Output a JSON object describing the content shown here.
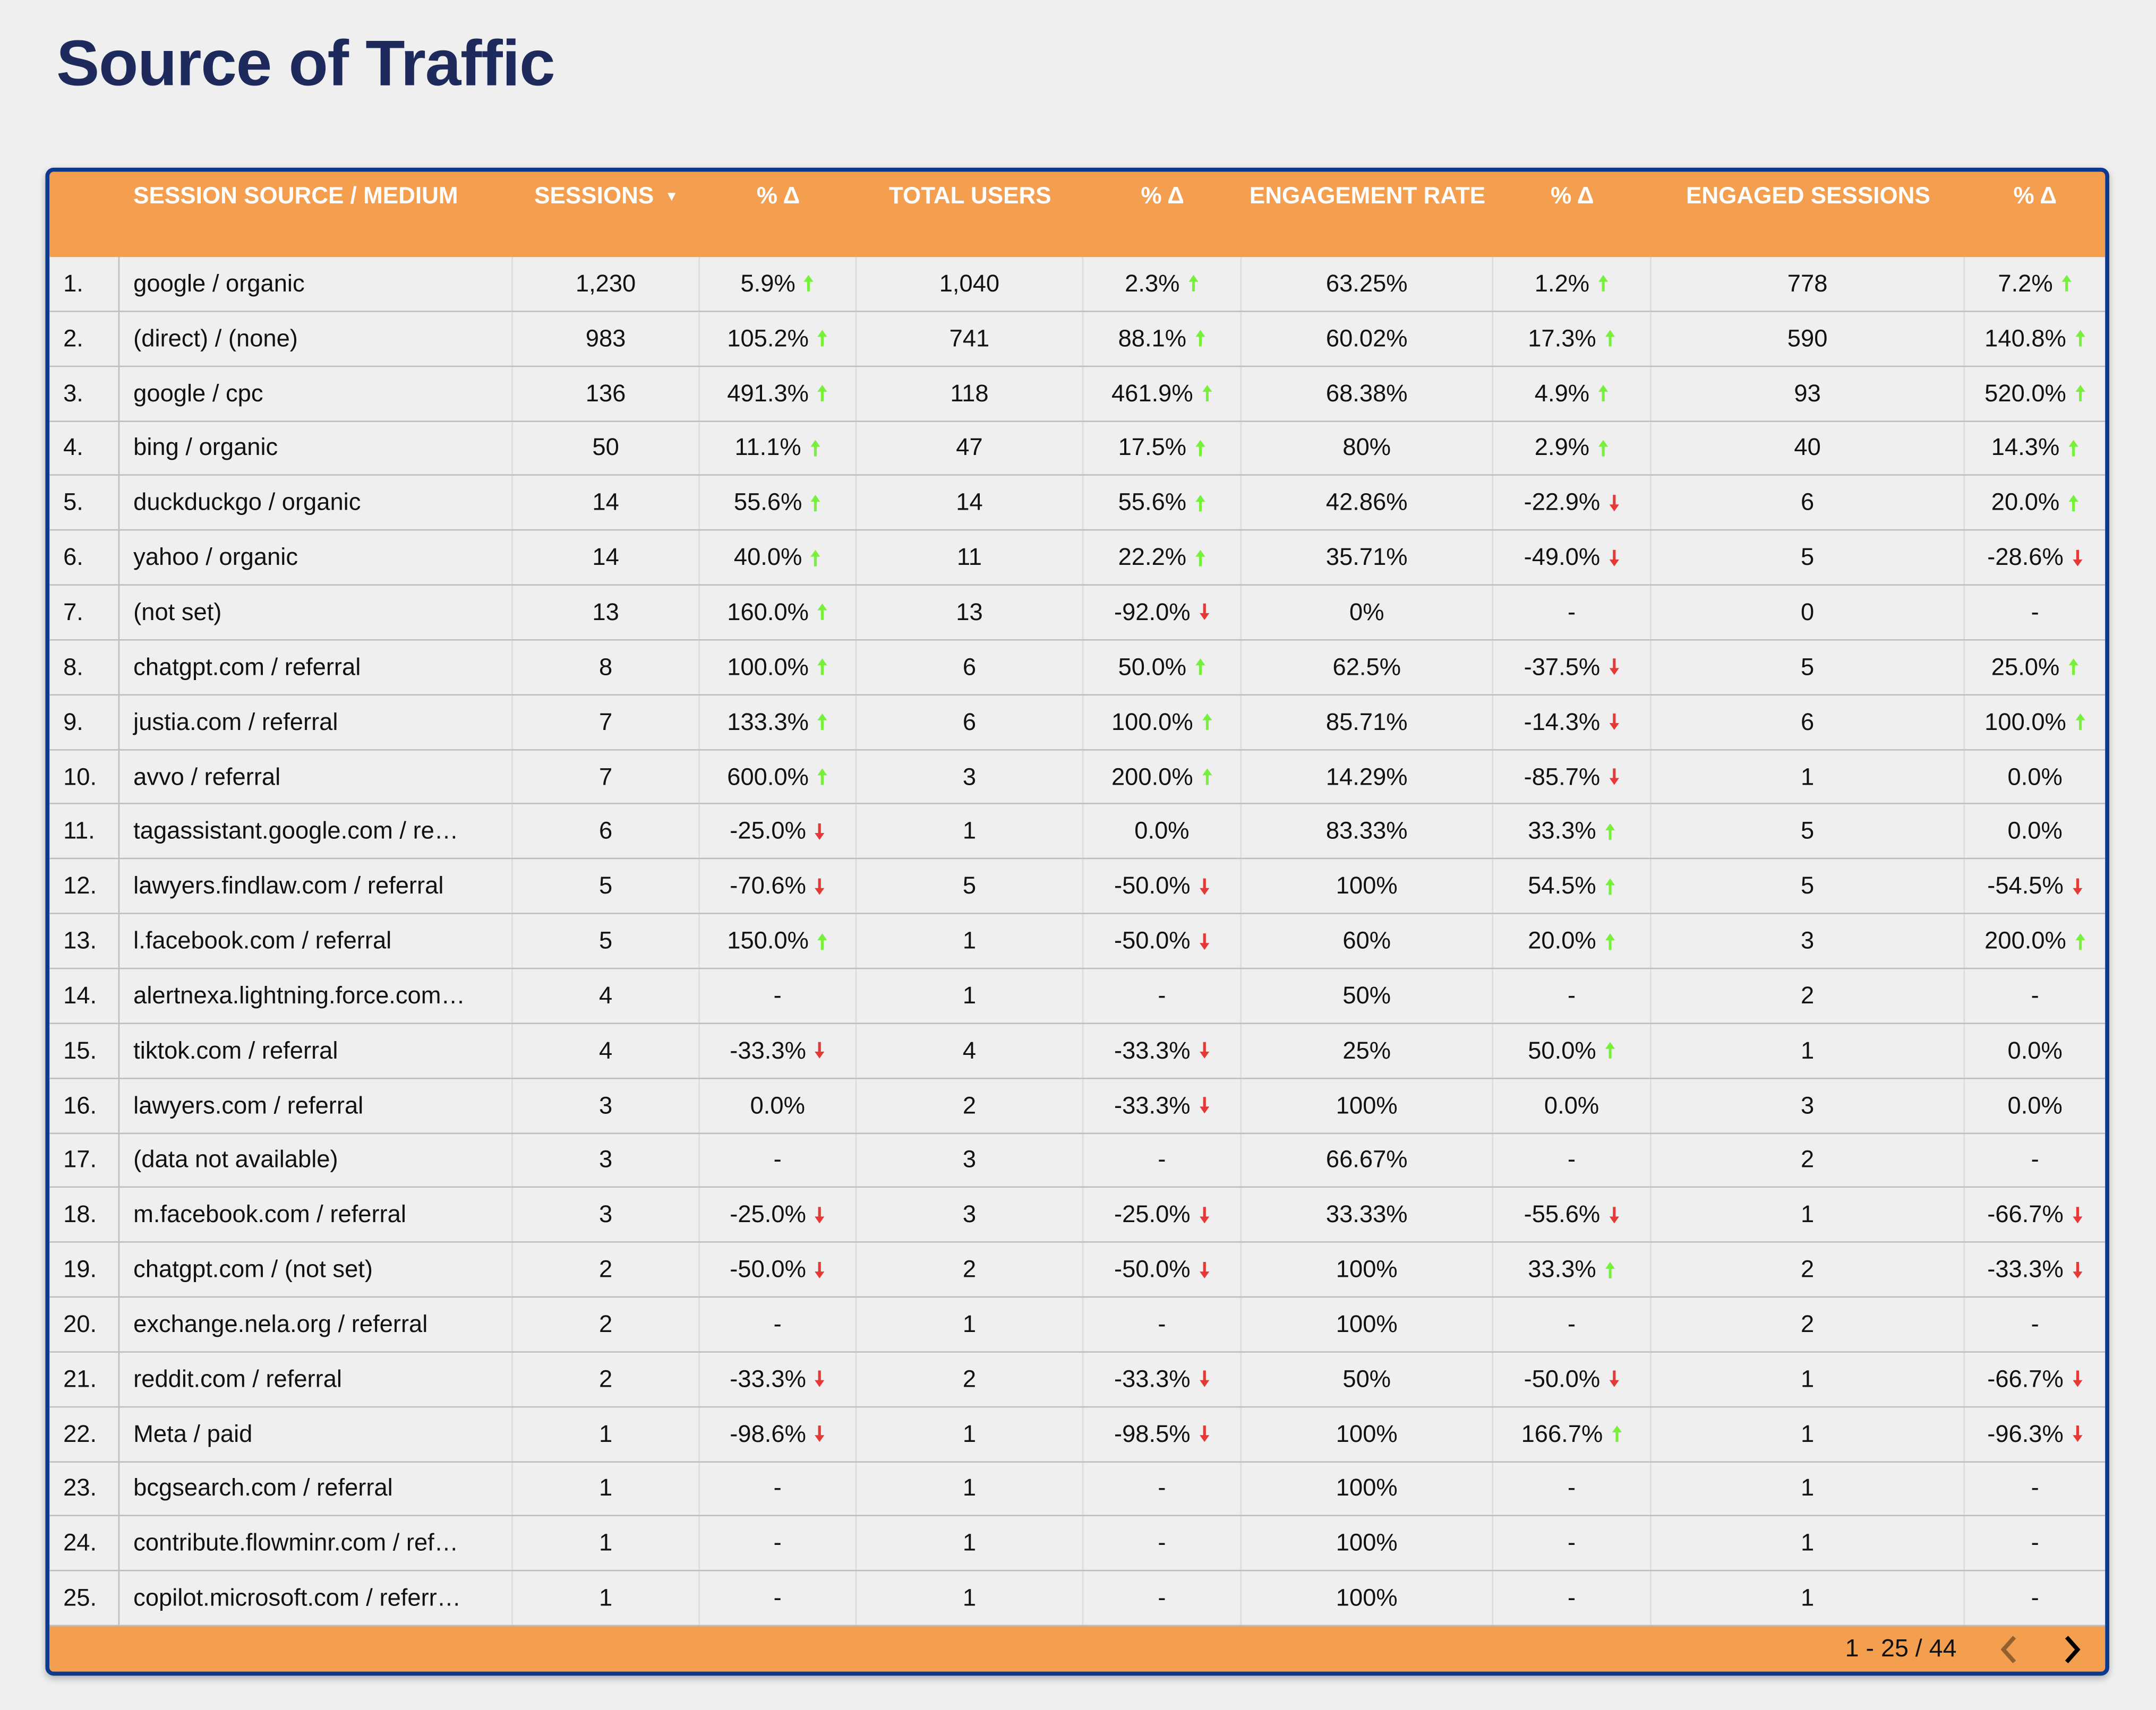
{
  "title": "Source of Traffic",
  "colors": {
    "header_bg": "#f49e50",
    "border": "#0d3a8c",
    "title": "#1f2a5c",
    "up": "#76f03a",
    "down": "#e53935"
  },
  "sort_icon": "caret-down-icon",
  "headers": [
    "",
    "SESSION SOURCE / MEDIUM",
    "SESSIONS",
    "% Δ",
    "TOTAL USERS",
    "% Δ",
    "ENGAGEMENT RATE",
    "% Δ",
    "ENGAGED SESSIONS",
    "% Δ"
  ],
  "rows": [
    {
      "n": "1.",
      "source": "google / organic",
      "cells": [
        [
          "1,230"
        ],
        [
          "5.9%",
          "up"
        ],
        [
          "1,040"
        ],
        [
          "2.3%",
          "up"
        ],
        [
          "63.25%"
        ],
        [
          "1.2%",
          "up"
        ],
        [
          "778"
        ],
        [
          "7.2%",
          "up"
        ]
      ]
    },
    {
      "n": "2.",
      "source": "(direct) / (none)",
      "cells": [
        [
          "983"
        ],
        [
          "105.2%",
          "up"
        ],
        [
          "741"
        ],
        [
          "88.1%",
          "up"
        ],
        [
          "60.02%"
        ],
        [
          "17.3%",
          "up"
        ],
        [
          "590"
        ],
        [
          "140.8%",
          "up"
        ]
      ]
    },
    {
      "n": "3.",
      "source": "google / cpc",
      "cells": [
        [
          "136"
        ],
        [
          "491.3%",
          "up"
        ],
        [
          "118"
        ],
        [
          "461.9%",
          "up"
        ],
        [
          "68.38%"
        ],
        [
          "4.9%",
          "up"
        ],
        [
          "93"
        ],
        [
          "520.0%",
          "up"
        ]
      ]
    },
    {
      "n": "4.",
      "source": "bing / organic",
      "cells": [
        [
          "50"
        ],
        [
          "11.1%",
          "up"
        ],
        [
          "47"
        ],
        [
          "17.5%",
          "up"
        ],
        [
          "80%"
        ],
        [
          "2.9%",
          "up"
        ],
        [
          "40"
        ],
        [
          "14.3%",
          "up"
        ]
      ]
    },
    {
      "n": "5.",
      "source": "duckduckgo / organic",
      "cells": [
        [
          "14"
        ],
        [
          "55.6%",
          "up"
        ],
        [
          "14"
        ],
        [
          "55.6%",
          "up"
        ],
        [
          "42.86%"
        ],
        [
          "-22.9%",
          "down"
        ],
        [
          "6"
        ],
        [
          "20.0%",
          "up"
        ]
      ]
    },
    {
      "n": "6.",
      "source": "yahoo / organic",
      "cells": [
        [
          "14"
        ],
        [
          "40.0%",
          "up"
        ],
        [
          "11"
        ],
        [
          "22.2%",
          "up"
        ],
        [
          "35.71%"
        ],
        [
          "-49.0%",
          "down"
        ],
        [
          "5"
        ],
        [
          "-28.6%",
          "down"
        ]
      ]
    },
    {
      "n": "7.",
      "source": "(not set)",
      "cells": [
        [
          "13"
        ],
        [
          "160.0%",
          "up"
        ],
        [
          "13"
        ],
        [
          "-92.0%",
          "down"
        ],
        [
          "0%"
        ],
        [
          "-"
        ],
        [
          "0"
        ],
        [
          "-"
        ]
      ]
    },
    {
      "n": "8.",
      "source": "chatgpt.com / referral",
      "cells": [
        [
          "8"
        ],
        [
          "100.0%",
          "up"
        ],
        [
          "6"
        ],
        [
          "50.0%",
          "up"
        ],
        [
          "62.5%"
        ],
        [
          "-37.5%",
          "down"
        ],
        [
          "5"
        ],
        [
          "25.0%",
          "up"
        ]
      ]
    },
    {
      "n": "9.",
      "source": "justia.com / referral",
      "cells": [
        [
          "7"
        ],
        [
          "133.3%",
          "up"
        ],
        [
          "6"
        ],
        [
          "100.0%",
          "up"
        ],
        [
          "85.71%"
        ],
        [
          "-14.3%",
          "down"
        ],
        [
          "6"
        ],
        [
          "100.0%",
          "up"
        ]
      ]
    },
    {
      "n": "10.",
      "source": "avvo / referral",
      "cells": [
        [
          "7"
        ],
        [
          "600.0%",
          "up"
        ],
        [
          "3"
        ],
        [
          "200.0%",
          "up"
        ],
        [
          "14.29%"
        ],
        [
          "-85.7%",
          "down"
        ],
        [
          "1"
        ],
        [
          "0.0%"
        ]
      ]
    },
    {
      "n": "11.",
      "source": "tagassistant.google.com / re…",
      "cells": [
        [
          "6"
        ],
        [
          "-25.0%",
          "down"
        ],
        [
          "1"
        ],
        [
          "0.0%"
        ],
        [
          "83.33%"
        ],
        [
          "33.3%",
          "up"
        ],
        [
          "5"
        ],
        [
          "0.0%"
        ]
      ]
    },
    {
      "n": "12.",
      "source": "lawyers.findlaw.com / referral",
      "cells": [
        [
          "5"
        ],
        [
          "-70.6%",
          "down"
        ],
        [
          "5"
        ],
        [
          "-50.0%",
          "down"
        ],
        [
          "100%"
        ],
        [
          "54.5%",
          "up"
        ],
        [
          "5"
        ],
        [
          "-54.5%",
          "down"
        ]
      ]
    },
    {
      "n": "13.",
      "source": "l.facebook.com / referral",
      "cells": [
        [
          "5"
        ],
        [
          "150.0%",
          "up"
        ],
        [
          "1"
        ],
        [
          "-50.0%",
          "down"
        ],
        [
          "60%"
        ],
        [
          "20.0%",
          "up"
        ],
        [
          "3"
        ],
        [
          "200.0%",
          "up"
        ]
      ]
    },
    {
      "n": "14.",
      "source": "alertnexa.lightning.force.com…",
      "cells": [
        [
          "4"
        ],
        [
          "-"
        ],
        [
          "1"
        ],
        [
          "-"
        ],
        [
          "50%"
        ],
        [
          "-"
        ],
        [
          "2"
        ],
        [
          "-"
        ]
      ]
    },
    {
      "n": "15.",
      "source": "tiktok.com / referral",
      "cells": [
        [
          "4"
        ],
        [
          "-33.3%",
          "down"
        ],
        [
          "4"
        ],
        [
          "-33.3%",
          "down"
        ],
        [
          "25%"
        ],
        [
          "50.0%",
          "up"
        ],
        [
          "1"
        ],
        [
          "0.0%"
        ]
      ]
    },
    {
      "n": "16.",
      "source": "lawyers.com / referral",
      "cells": [
        [
          "3"
        ],
        [
          "0.0%"
        ],
        [
          "2"
        ],
        [
          "-33.3%",
          "down"
        ],
        [
          "100%"
        ],
        [
          "0.0%"
        ],
        [
          "3"
        ],
        [
          "0.0%"
        ]
      ]
    },
    {
      "n": "17.",
      "source": "(data not available)",
      "cells": [
        [
          "3"
        ],
        [
          "-"
        ],
        [
          "3"
        ],
        [
          "-"
        ],
        [
          "66.67%"
        ],
        [
          "-"
        ],
        [
          "2"
        ],
        [
          "-"
        ]
      ]
    },
    {
      "n": "18.",
      "source": "m.facebook.com / referral",
      "cells": [
        [
          "3"
        ],
        [
          "-25.0%",
          "down"
        ],
        [
          "3"
        ],
        [
          "-25.0%",
          "down"
        ],
        [
          "33.33%"
        ],
        [
          "-55.6%",
          "down"
        ],
        [
          "1"
        ],
        [
          "-66.7%",
          "down"
        ]
      ]
    },
    {
      "n": "19.",
      "source": "chatgpt.com / (not set)",
      "cells": [
        [
          "2"
        ],
        [
          "-50.0%",
          "down"
        ],
        [
          "2"
        ],
        [
          "-50.0%",
          "down"
        ],
        [
          "100%"
        ],
        [
          "33.3%",
          "up"
        ],
        [
          "2"
        ],
        [
          "-33.3%",
          "down"
        ]
      ]
    },
    {
      "n": "20.",
      "source": "exchange.nela.org / referral",
      "cells": [
        [
          "2"
        ],
        [
          "-"
        ],
        [
          "1"
        ],
        [
          "-"
        ],
        [
          "100%"
        ],
        [
          "-"
        ],
        [
          "2"
        ],
        [
          "-"
        ]
      ]
    },
    {
      "n": "21.",
      "source": "reddit.com / referral",
      "cells": [
        [
          "2"
        ],
        [
          "-33.3%",
          "down"
        ],
        [
          "2"
        ],
        [
          "-33.3%",
          "down"
        ],
        [
          "50%"
        ],
        [
          "-50.0%",
          "down"
        ],
        [
          "1"
        ],
        [
          "-66.7%",
          "down"
        ]
      ]
    },
    {
      "n": "22.",
      "source": "Meta / paid",
      "cells": [
        [
          "1"
        ],
        [
          "-98.6%",
          "down"
        ],
        [
          "1"
        ],
        [
          "-98.5%",
          "down"
        ],
        [
          "100%"
        ],
        [
          "166.7%",
          "up"
        ],
        [
          "1"
        ],
        [
          "-96.3%",
          "down"
        ]
      ]
    },
    {
      "n": "23.",
      "source": "bcgsearch.com / referral",
      "cells": [
        [
          "1"
        ],
        [
          "-"
        ],
        [
          "1"
        ],
        [
          "-"
        ],
        [
          "100%"
        ],
        [
          "-"
        ],
        [
          "1"
        ],
        [
          "-"
        ]
      ]
    },
    {
      "n": "24.",
      "source": "contribute.flowminr.com / ref…",
      "cells": [
        [
          "1"
        ],
        [
          "-"
        ],
        [
          "1"
        ],
        [
          "-"
        ],
        [
          "100%"
        ],
        [
          "-"
        ],
        [
          "1"
        ],
        [
          "-"
        ]
      ]
    },
    {
      "n": "25.",
      "source": "copilot.microsoft.com / referr…",
      "cells": [
        [
          "1"
        ],
        [
          "-"
        ],
        [
          "1"
        ],
        [
          "-"
        ],
        [
          "100%"
        ],
        [
          "-"
        ],
        [
          "1"
        ],
        [
          "-"
        ]
      ]
    }
  ],
  "pagination": {
    "label": "1 - 25 / 44",
    "prev_icon": "chevron-left-icon",
    "next_icon": "chevron-right-icon"
  }
}
